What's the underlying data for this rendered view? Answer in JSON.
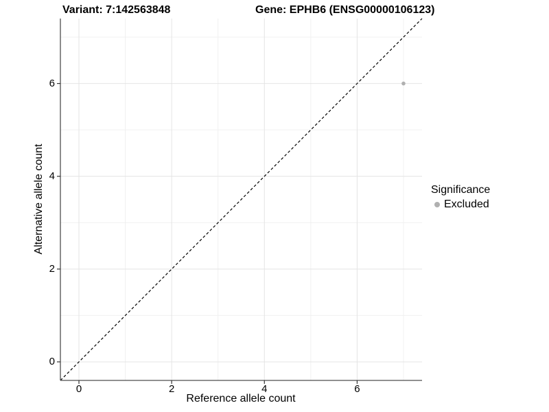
{
  "titles": {
    "variant": "Variant: 7:142563848",
    "gene": "Gene: EPHB6 (ENSG00000106123)"
  },
  "axes": {
    "x_label": "Reference allele count",
    "y_label": "Alternative allele count"
  },
  "legend": {
    "title": "Significance",
    "items": [
      {
        "label": "Excluded",
        "color": "#b0b0b0"
      }
    ]
  },
  "colors": {
    "background": "#ffffff",
    "grid_major": "#e4e4e4",
    "grid_minor": "#f0f0f0",
    "axis_line": "#4d4d4d",
    "tick_mark": "#333333",
    "reference_line": "#000000",
    "point": "#b0b0b0",
    "text": "#000000"
  },
  "chart_data": {
    "type": "scatter",
    "title": "Variant: 7:142563848 | Gene: EPHB6 (ENSG00000106123)",
    "xlabel": "Reference allele count",
    "ylabel": "Alternative allele count",
    "xlim": [
      -0.4,
      7.4
    ],
    "ylim": [
      -0.4,
      7.4
    ],
    "x_ticks": [
      0,
      2,
      4,
      6
    ],
    "y_ticks": [
      0,
      2,
      4,
      6
    ],
    "x_minor_ticks": [
      1,
      3,
      5,
      7
    ],
    "y_minor_ticks": [
      1,
      3,
      5,
      7
    ],
    "grid": "major+minor",
    "legend_position": "right",
    "legend_title": "Significance",
    "series": [
      {
        "name": "Excluded",
        "color": "#b0b0b0",
        "points": [
          {
            "x": 7,
            "y": 6
          }
        ]
      }
    ],
    "reference_line": {
      "type": "identity y=x",
      "style": "dashed",
      "color": "#000000"
    }
  }
}
